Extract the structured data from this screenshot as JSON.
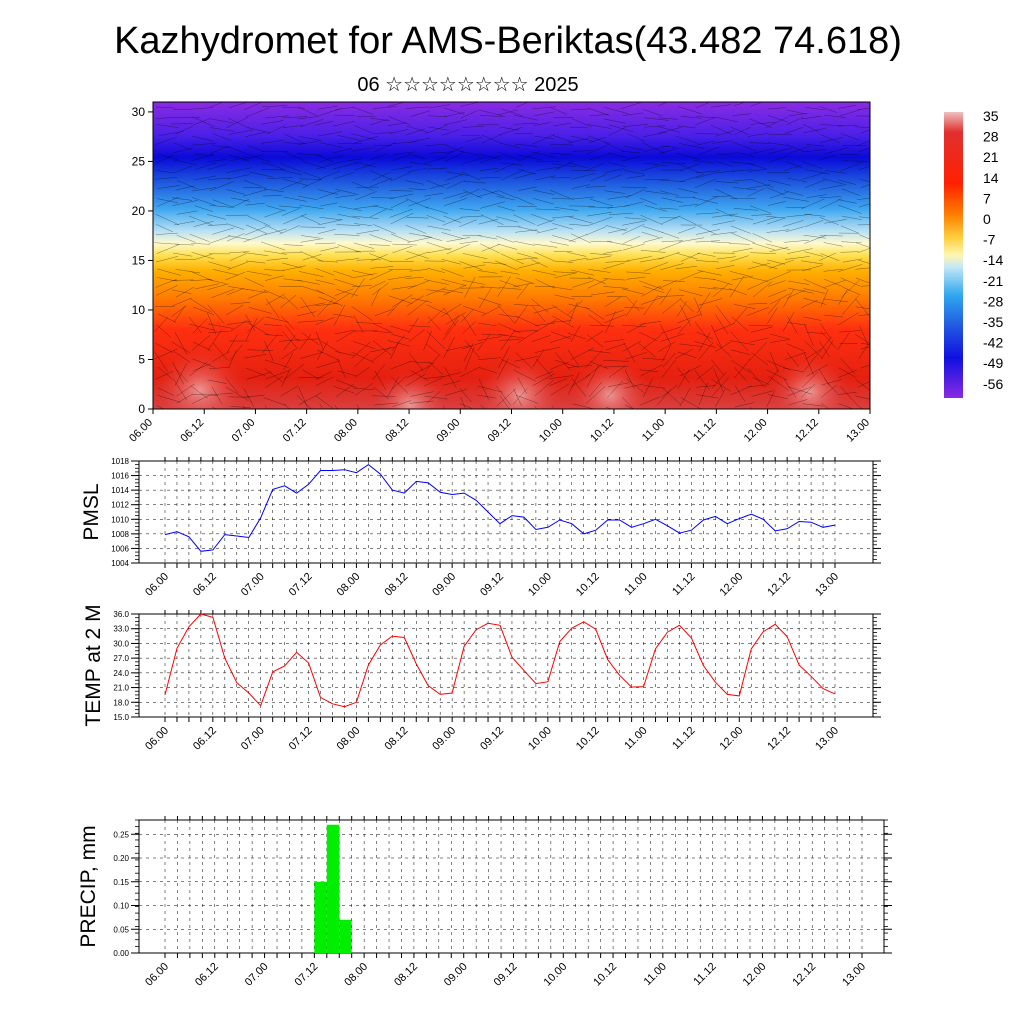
{
  "header": {
    "title": "Kazhydromet for AMS-Beriktas(43.482 74.618)",
    "subtitle": "06 ☆☆☆☆☆☆☆☆ 2025"
  },
  "colorbar": {
    "labels": [
      "35",
      "28",
      "21",
      "14",
      "7",
      "0",
      "-7",
      "-14",
      "-21",
      "-28",
      "-35",
      "-42",
      "-49",
      "-56"
    ]
  },
  "chart_data": [
    {
      "type": "heatmap",
      "name": "temperature-wind-cross-section",
      "x_ticks": [
        "06.00",
        "06.12",
        "07.00",
        "07.12",
        "08.00",
        "08.12",
        "09.00",
        "09.12",
        "10.00",
        "10.12",
        "11.00",
        "11.12",
        "12.00",
        "12.12",
        "13.00"
      ],
      "y_ticks": [
        0,
        5,
        10,
        15,
        20,
        25,
        30
      ],
      "ylim": [
        0,
        31
      ],
      "colorscale": [
        "#e9b7b7",
        "#e02020",
        "#ff3300",
        "#ff8000",
        "#ffb000",
        "#ffe040",
        "#fff7b0",
        "#c8e8f0",
        "#40b0f0",
        "#2070e8",
        "#1010e0",
        "#5a1ae8",
        "#8a2be2"
      ]
    },
    {
      "type": "line",
      "ylabel": "PMSL",
      "color": "#0000ff",
      "ylim": [
        1004,
        1018
      ],
      "y_ticks": [
        "1004",
        "1006",
        "1008",
        "1010",
        "1012",
        "1014",
        "1016",
        "1018"
      ],
      "x_ticks": [
        "06.00",
        "06.12",
        "07.00",
        "07.12",
        "08.00",
        "08.12",
        "09.00",
        "09.12",
        "10.00",
        "10.12",
        "11.00",
        "11.12",
        "12.00",
        "12.12",
        "13.00"
      ],
      "x_step_hours": 3,
      "values": [
        1007.9,
        1008.3,
        1007.6,
        1005.6,
        1005.8,
        1007.9,
        1007.7,
        1007.5,
        1010.2,
        1014.1,
        1014.6,
        1013.6,
        1014.8,
        1016.7,
        1016.7,
        1016.8,
        1016.4,
        1017.5,
        1016.2,
        1014.0,
        1013.6,
        1015.2,
        1015.0,
        1013.7,
        1013.4,
        1013.6,
        1012.6,
        1011.0,
        1009.4,
        1010.5,
        1010.3,
        1008.6,
        1008.9,
        1009.9,
        1009.4,
        1008.0,
        1008.5,
        1009.9,
        1009.9,
        1008.9,
        1009.4,
        1010.0,
        1009.1,
        1008.1,
        1008.5,
        1009.9,
        1010.4,
        1009.4,
        1010.1,
        1010.7,
        1010.0,
        1008.4,
        1008.7,
        1009.7,
        1009.6,
        1008.9,
        1009.2
      ]
    },
    {
      "type": "line",
      "ylabel": "TEMP at 2 M",
      "color": "#ff0000",
      "ylim": [
        15,
        36
      ],
      "y_ticks": [
        "15.0",
        "18.0",
        "21.0",
        "24.0",
        "27.0",
        "30.0",
        "33.0",
        "36.0"
      ],
      "x_ticks": [
        "06.00",
        "06.12",
        "07.00",
        "07.12",
        "08.00",
        "08.12",
        "09.00",
        "09.12",
        "10.00",
        "10.12",
        "11.00",
        "11.12",
        "12.00",
        "12.12",
        "13.00"
      ],
      "x_step_hours": 3,
      "values": [
        19.5,
        29.0,
        33.4,
        36.0,
        35.3,
        27.0,
        22.0,
        19.9,
        17.3,
        24.2,
        25.4,
        28.2,
        26.0,
        19.0,
        17.7,
        17.1,
        18.0,
        25.6,
        29.7,
        31.5,
        31.2,
        25.8,
        21.4,
        19.6,
        19.9,
        29.4,
        32.8,
        34.1,
        33.7,
        27.2,
        24.5,
        21.8,
        22.2,
        30.4,
        33.1,
        34.4,
        32.9,
        26.7,
        23.5,
        21.1,
        21.2,
        28.9,
        32.3,
        33.7,
        31.1,
        25.5,
        22.1,
        19.6,
        19.3,
        28.9,
        32.4,
        33.9,
        31.4,
        25.6,
        23.3,
        20.8,
        19.7
      ]
    },
    {
      "type": "bar",
      "ylabel": "PRECIP, mm",
      "color": "#00ee00",
      "ylim": [
        0,
        0.28
      ],
      "y_ticks": [
        "0.00",
        "0.05",
        "0.10",
        "0.15",
        "0.20",
        "0.25"
      ],
      "x_ticks": [
        "06.00",
        "06.12",
        "07.00",
        "07.12",
        "08.00",
        "08.12",
        "09.00",
        "09.12",
        "10.00",
        "10.12",
        "11.00",
        "11.12",
        "12.00",
        "12.12",
        "13.00"
      ],
      "bars": [
        {
          "hour_start": 36,
          "hour_end": 39,
          "value": 0.15
        },
        {
          "hour_start": 39,
          "hour_end": 42,
          "value": 0.27
        },
        {
          "hour_start": 42,
          "hour_end": 45,
          "value": 0.07
        }
      ]
    }
  ]
}
